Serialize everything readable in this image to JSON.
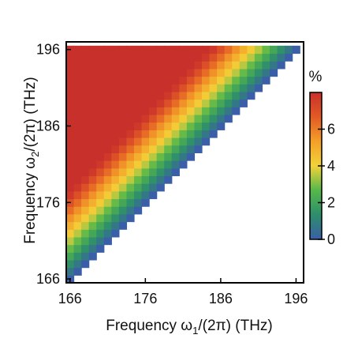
{
  "chart_data": {
    "type": "heatmap",
    "xlabel": {
      "pre": "Frequency ω",
      "sub": "1",
      "post": "/(2π) (THz)"
    },
    "ylabel": {
      "pre": "Frequency ω",
      "sub": "2",
      "post": "/(2π) (THz)"
    },
    "xlim": [
      165.5,
      197
    ],
    "ylim": [
      165.5,
      197
    ],
    "xticks": [
      "166",
      "176",
      "186",
      "196"
    ],
    "yticks": [
      "166",
      "176",
      "186",
      "196"
    ],
    "grid_range": [
      166,
      196
    ],
    "grid_steps": 30,
    "shown_region": "upper-left of diagonal, ω2 ≥ ω1",
    "value_model": "value ≈ 0.7 · |ω2 − ω1| (%), clipped to colorbar max",
    "colorbar": {
      "label": "%",
      "range": [
        0,
        8
      ],
      "ticks": [
        "0",
        "2",
        "4",
        "6"
      ],
      "colors": [
        "#3a5fa8",
        "#2e8e6b",
        "#56b84a",
        "#f2d23a",
        "#f4a028",
        "#e25a25",
        "#c8302b"
      ]
    }
  }
}
